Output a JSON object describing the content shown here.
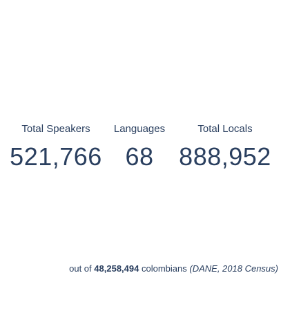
{
  "indicators": [
    {
      "label": "Total Speakers",
      "value": "521,766"
    },
    {
      "label": "Languages",
      "value": "68"
    },
    {
      "label": "Total Locals",
      "value": "888,952"
    }
  ],
  "footnote": {
    "prefix": "out of",
    "population": "48,258,494",
    "middle": "colombians",
    "source": "(DANE, 2018 Census)"
  },
  "colors": {
    "text": "#2a3f5f",
    "background": "#ffffff"
  }
}
